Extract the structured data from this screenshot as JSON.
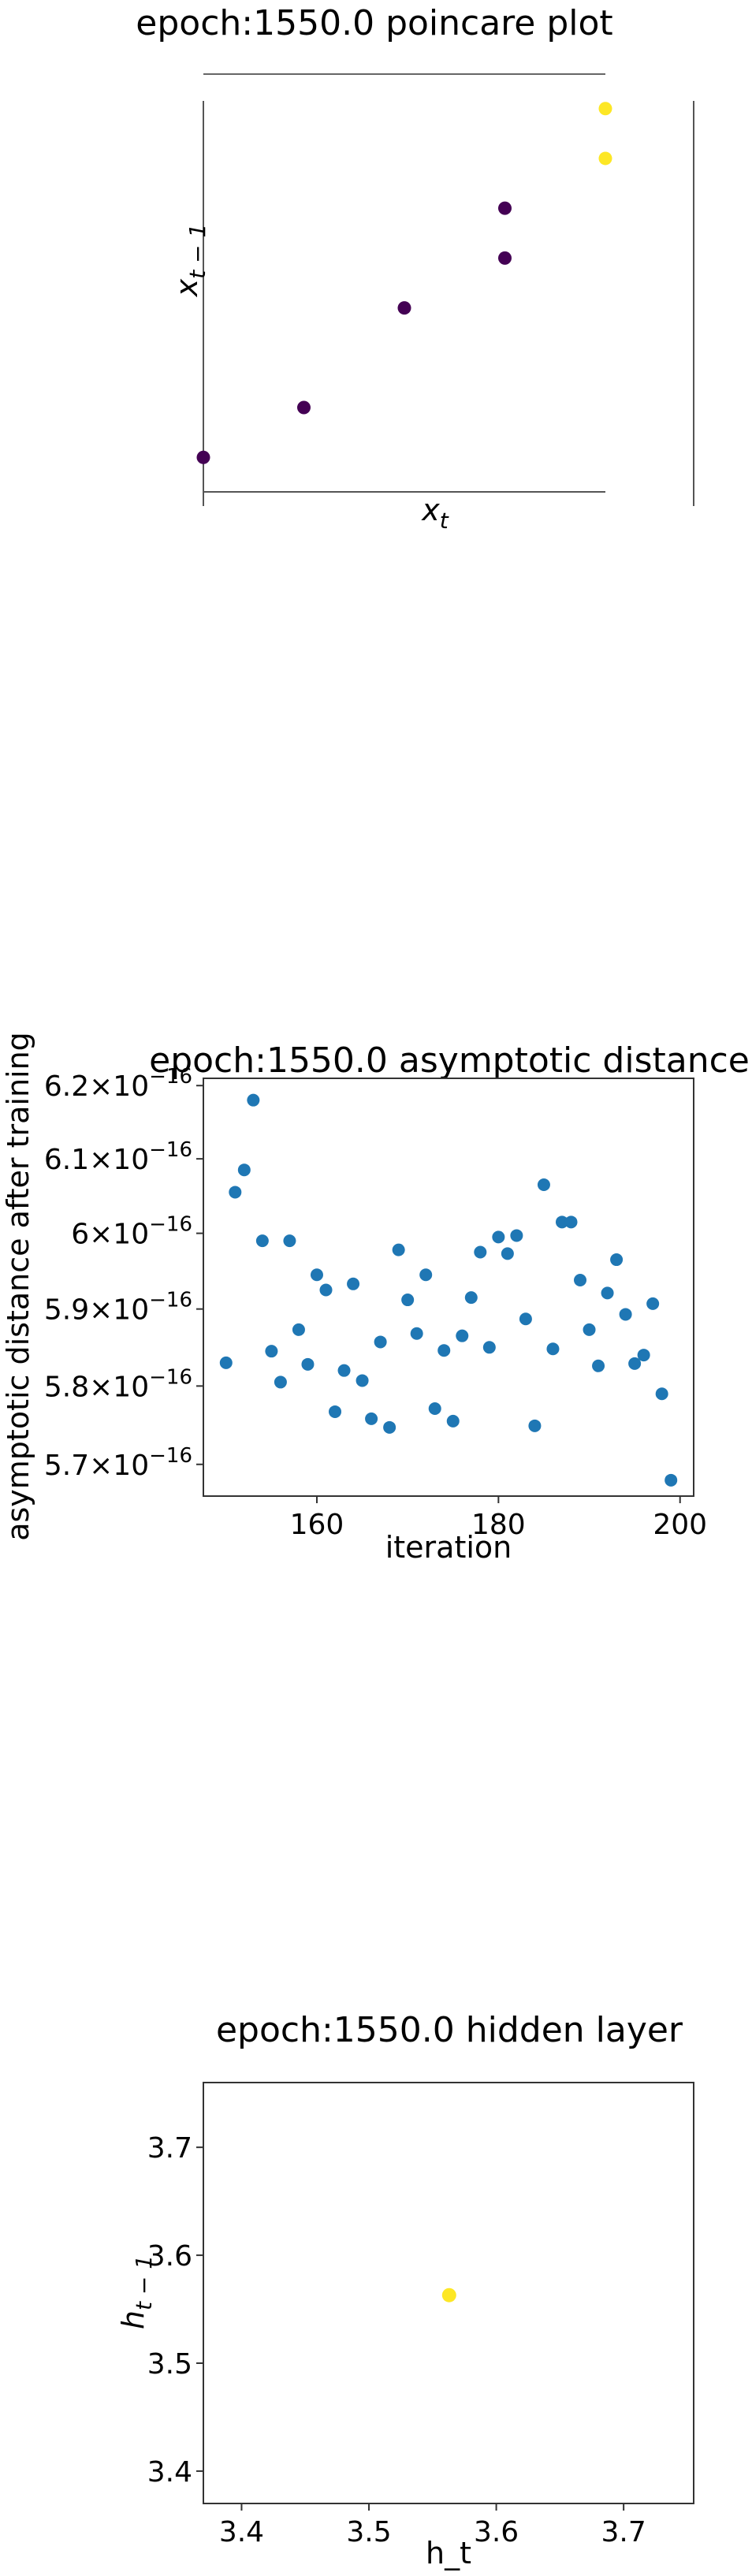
{
  "chart_data": [
    {
      "type": "scatter",
      "title": "epoch:1550.0 poincare plot",
      "xlabel": "x",
      "xlabel_sub": "t",
      "ylabel": "x",
      "ylabel_sub": "t − 1",
      "grid": false,
      "axes_visible": false,
      "points": [
        {
          "x": 0.0,
          "y": 0.07,
          "c": "#440154"
        },
        {
          "x": 0.25,
          "y": 0.2,
          "c": "#440154"
        },
        {
          "x": 0.5,
          "y": 0.46,
          "c": "#440154"
        },
        {
          "x": 0.75,
          "y": 0.59,
          "c": "#440154"
        },
        {
          "x": 0.75,
          "y": 0.72,
          "c": "#440154"
        },
        {
          "x": 1.0,
          "y": 0.85,
          "c": "#fde725"
        },
        {
          "x": 1.0,
          "y": 0.98,
          "c": "#fde725"
        }
      ],
      "xlim": [
        0,
        1
      ],
      "ylim": [
        -0.02,
        1.0
      ]
    },
    {
      "type": "scatter",
      "title": "epoch:1550.0 asymptotic distance",
      "xlabel": "iteration",
      "ylabel": "asymptotic distance after training",
      "color": "#1f77b4",
      "grid": false,
      "yscale": "log",
      "xlim": [
        147.5,
        201.5
      ],
      "ylim": [
        5.66e-16,
        6.21e-16
      ],
      "xticks": [
        160,
        180,
        200
      ],
      "ytick_values": [
        5.7e-16,
        5.8e-16,
        5.9e-16,
        6e-16,
        6.1e-16,
        6.2e-16
      ],
      "ytick_labels": [
        {
          "mant": "5.7",
          "exp": "−16"
        },
        {
          "mant": "5.8",
          "exp": "−16"
        },
        {
          "mant": "5.9",
          "exp": "−16"
        },
        {
          "mant": "6",
          "exp": "−16"
        },
        {
          "mant": "6.1",
          "exp": "−16"
        },
        {
          "mant": "6.2",
          "exp": "−16"
        }
      ],
      "x": [
        150,
        151,
        152,
        153,
        154,
        155,
        156,
        157,
        158,
        159,
        160,
        161,
        162,
        163,
        164,
        165,
        166,
        167,
        168,
        169,
        170,
        171,
        172,
        173,
        174,
        175,
        176,
        177,
        178,
        179,
        180,
        181,
        182,
        183,
        184,
        185,
        186,
        187,
        188,
        189,
        190,
        191,
        192,
        193,
        194,
        195,
        196,
        197,
        198,
        199
      ],
      "y": [
        5.83e-16,
        6.055e-16,
        6.085e-16,
        6.18e-16,
        5.99e-16,
        5.845e-16,
        5.805e-16,
        5.99e-16,
        5.873e-16,
        5.828e-16,
        5.945e-16,
        5.925e-16,
        5.767e-16,
        5.82e-16,
        5.933e-16,
        5.807e-16,
        5.758e-16,
        5.857e-16,
        5.747e-16,
        5.978e-16,
        5.912e-16,
        5.868e-16,
        5.945e-16,
        5.771e-16,
        5.846e-16,
        5.755e-16,
        5.865e-16,
        5.915e-16,
        5.975e-16,
        5.85e-16,
        5.995e-16,
        5.973e-16,
        5.997e-16,
        5.887e-16,
        5.749e-16,
        6.065e-16,
        5.848e-16,
        6.015e-16,
        6.015e-16,
        5.938e-16,
        5.873e-16,
        5.826e-16,
        5.921e-16,
        5.965e-16,
        5.893e-16,
        5.829e-16,
        5.84e-16,
        5.907e-16,
        5.79e-16,
        5.68e-16
      ]
    },
    {
      "type": "scatter",
      "title": "epoch:1550.0 hidden layer",
      "xlabel": "h_t",
      "ylabel": "h",
      "ylabel_sub": "t − 1",
      "grid": false,
      "xlim": [
        3.37,
        3.755
      ],
      "ylim": [
        3.37,
        3.76
      ],
      "xticks": [
        3.4,
        3.5,
        3.6,
        3.7
      ],
      "yticks": [
        3.4,
        3.5,
        3.6,
        3.7
      ],
      "points": [
        {
          "x": 3.563,
          "y": 3.563,
          "c": "#fde725"
        }
      ]
    }
  ]
}
